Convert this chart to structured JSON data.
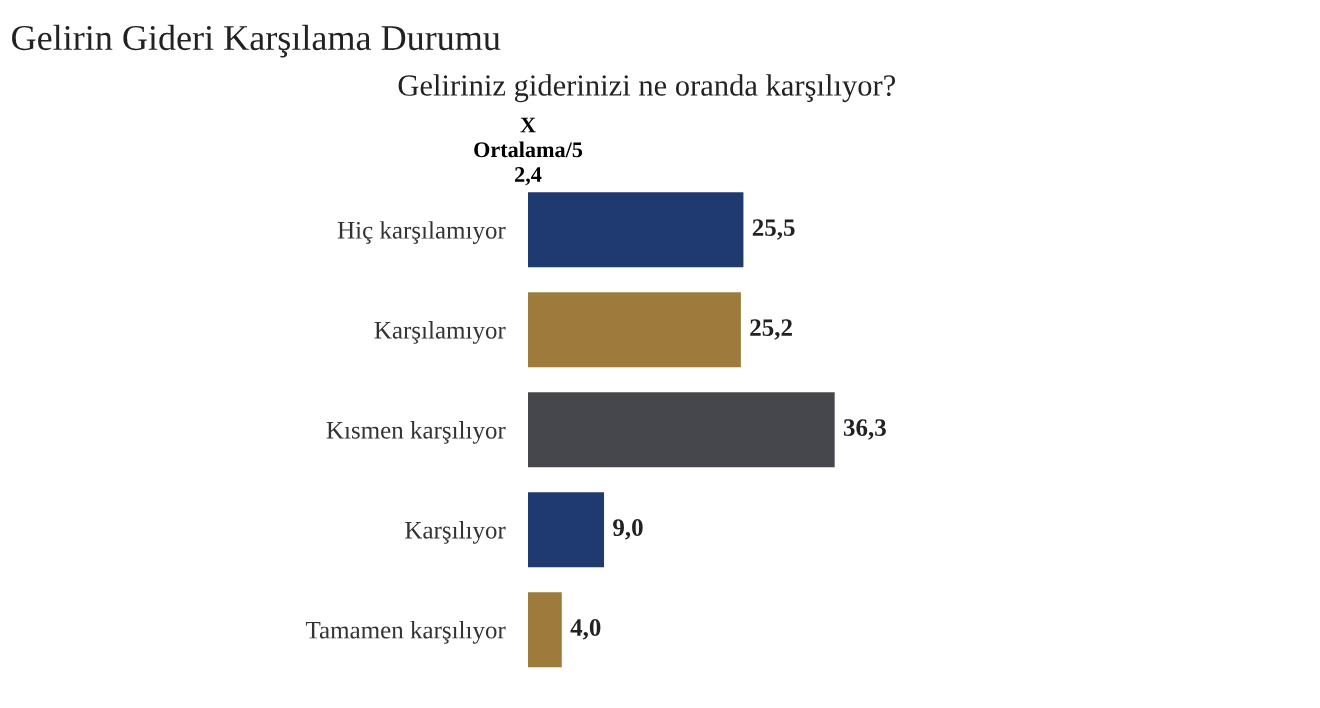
{
  "chart_data": {
    "type": "bar",
    "orientation": "horizontal",
    "title": "Gelirin Gideri Karşılama Durumu",
    "subtitle": "Geliriniz giderinizi ne oranda karşılıyor?",
    "annotations": [
      "X\nOrtalama/5\n2,4"
    ],
    "categories": [
      "Hiç karşılamıyor",
      "Karşılamıyor",
      "Kısmen karşılıyor",
      "Karşılıyor",
      "Tamamen karşılıyor"
    ],
    "values": [
      25.5,
      25.2,
      36.3,
      9.0,
      4.0
    ],
    "colors": [
      "#1f3a6e",
      "#9c7b3c",
      "#45474d",
      "#1f3a6e",
      "#9c7b3c"
    ],
    "value_labels": [
      "25,5",
      "25,2",
      "36,3",
      "9,0",
      "4,0"
    ],
    "grid": false,
    "legend": false
  }
}
